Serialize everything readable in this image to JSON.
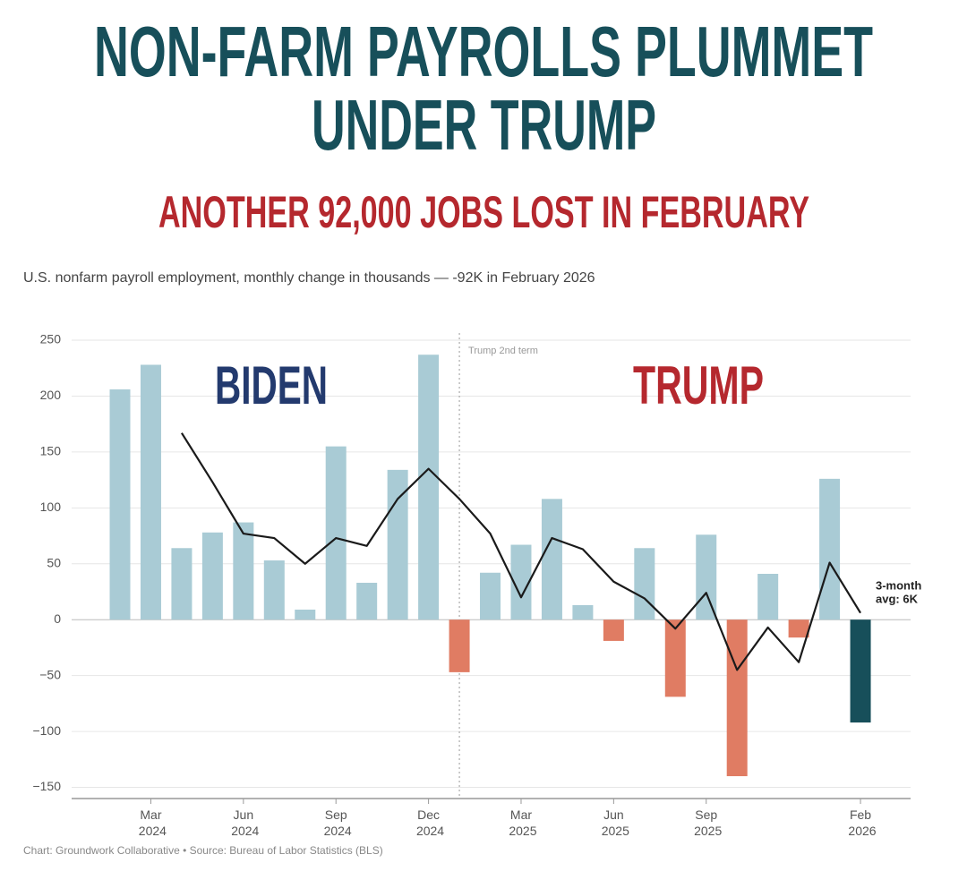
{
  "chart_data": {
    "type": "bar",
    "title": [
      "NON-FARM PAYROLLS PLUMMET",
      "UNDER TRUMP"
    ],
    "subtitle": "ANOTHER 92,000 JOBS LOST IN FEBRUARY",
    "description": "U.S. nonfarm payroll employment, monthly change in thousands — -92K in February 2026",
    "source": "Chart: Groundwork Collaborative • Source: Bureau of Labor Statistics (BLS)",
    "annotations": {
      "left": "BIDEN",
      "right": "TRUMP",
      "divider": "Trump 2nd term",
      "avg": [
        "3-month",
        "avg: 6K"
      ]
    },
    "categories": [
      null,
      "Mar 2024",
      null,
      null,
      "Jun 2024",
      null,
      null,
      "Sep 2024",
      null,
      null,
      "Dec 2024",
      null,
      null,
      "Mar 2025",
      null,
      null,
      "Jun 2025",
      null,
      null,
      "Sep 2025",
      null,
      null,
      null,
      null,
      "Feb 2026"
    ],
    "values": [
      206,
      228,
      64,
      78,
      87,
      53,
      9,
      155,
      33,
      134,
      237,
      -47,
      42,
      67,
      108,
      13,
      -19,
      64,
      -69,
      76,
      -140,
      41,
      -16,
      126,
      -92
    ],
    "avg_values": [
      null,
      null,
      167,
      123,
      77,
      73,
      50,
      73,
      66,
      108,
      135,
      108,
      77,
      20,
      73,
      63,
      34,
      19,
      -8,
      24,
      -45,
      -7,
      -38,
      51,
      6
    ],
    "bar_colors": {
      "positive": "#a9cbd5",
      "negative": "#e07c63",
      "latest": "#174f5a"
    },
    "line_color": "#1a1a1a",
    "ylim": [
      -160,
      250
    ],
    "yticks": [
      {
        "value": -150,
        "label": "−150"
      },
      {
        "value": -100,
        "label": "−100"
      },
      {
        "value": -50,
        "label": "−50"
      },
      0,
      50,
      100,
      150,
      200,
      250
    ],
    "grid": true
  }
}
